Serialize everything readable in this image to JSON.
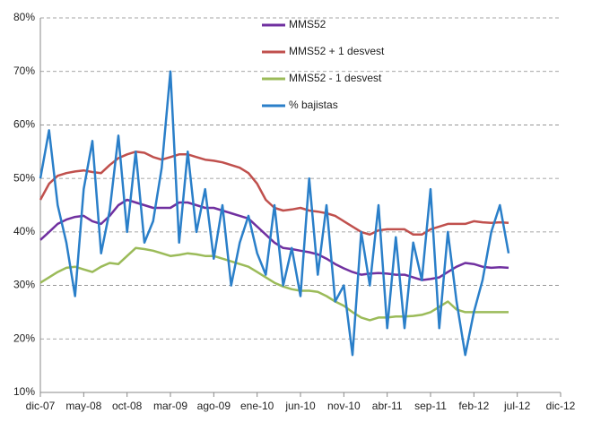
{
  "chart_data": {
    "type": "line",
    "categories": [
      "dic-07",
      null,
      null,
      null,
      null,
      "may-08",
      null,
      null,
      null,
      null,
      "oct-08",
      null,
      null,
      null,
      null,
      "mar-09",
      null,
      null,
      null,
      null,
      "ago-09",
      null,
      null,
      null,
      null,
      "ene-10",
      null,
      null,
      null,
      null,
      "jun-10",
      null,
      null,
      null,
      null,
      "nov-10",
      null,
      null,
      null,
      null,
      "abr-11",
      null,
      null,
      null,
      null,
      "sep-11",
      null,
      null,
      null,
      null,
      "feb-12",
      null,
      null,
      null,
      null,
      "jul-12",
      null,
      null,
      null,
      null,
      "dic-12"
    ],
    "series": [
      {
        "name": "MMS52",
        "color": "#7030a0",
        "values": [
          38.5,
          40,
          41.5,
          42.3,
          42.8,
          43,
          42,
          41.5,
          43,
          45,
          46,
          45.5,
          45,
          44.5,
          44.5,
          44.5,
          45.5,
          45.5,
          45,
          44.5,
          44.5,
          44,
          43.5,
          43,
          42.5,
          41,
          39.5,
          38,
          37,
          36.8,
          36.5,
          36.2,
          35.8,
          35,
          34,
          33.2,
          32.5,
          32,
          32.2,
          32.3,
          32.2,
          32,
          32,
          31.5,
          31,
          31.2,
          31.5,
          32.5,
          33.5,
          34.2,
          34,
          33.5,
          33.3,
          33.4,
          33.3,
          null,
          null,
          null,
          null,
          null,
          null
        ]
      },
      {
        "name": "MMS52 + 1 desvest",
        "color": "#c0504d",
        "values": [
          46,
          49,
          50.5,
          51,
          51.3,
          51.5,
          51.2,
          51,
          52.5,
          53.8,
          54.5,
          55,
          54.8,
          54,
          53.5,
          54,
          54.5,
          54.5,
          54,
          53.5,
          53.3,
          53,
          52.5,
          52,
          51,
          49,
          46,
          44.5,
          44,
          44.2,
          44.5,
          44,
          43.8,
          43.5,
          43,
          42,
          41,
          40,
          39.5,
          40.3,
          40.5,
          40.5,
          40.5,
          39.5,
          39.5,
          40.5,
          41,
          41.5,
          41.5,
          41.5,
          42,
          41.8,
          41.7,
          41.8,
          41.7,
          null,
          null,
          null,
          null,
          null,
          null
        ]
      },
      {
        "name": "MMS52 - 1 desvest",
        "color": "#9bbb59",
        "values": [
          30.5,
          31.5,
          32.5,
          33.3,
          33.5,
          33,
          32.5,
          33.5,
          34.2,
          34,
          35.5,
          37,
          36.8,
          36.5,
          36,
          35.5,
          35.7,
          36,
          35.8,
          35.5,
          35.5,
          35,
          34.5,
          34,
          33.5,
          32.5,
          31.5,
          30.5,
          29.8,
          29.3,
          29,
          29,
          28.8,
          28,
          27,
          26.2,
          25,
          24,
          23.5,
          24,
          24,
          24.2,
          24.2,
          24.3,
          24.5,
          25,
          26,
          27,
          25.5,
          25,
          25,
          25,
          25,
          25,
          25,
          null,
          null,
          null,
          null,
          null,
          null
        ]
      },
      {
        "name": "% bajistas",
        "color": "#2a7fc9",
        "values": [
          50,
          59,
          45,
          38,
          28,
          48,
          57,
          36,
          44,
          58,
          40,
          55,
          38,
          42,
          52,
          70,
          38,
          55,
          40,
          48,
          35,
          45,
          30,
          38,
          43,
          36,
          32,
          45,
          30,
          37,
          28,
          50,
          32,
          45,
          27,
          30,
          17,
          40,
          30,
          45,
          22,
          39,
          22,
          38,
          31,
          48,
          22,
          40,
          27,
          17,
          25,
          31,
          40,
          45,
          36,
          null,
          null,
          null,
          null,
          null,
          null
        ]
      }
    ],
    "ylim": [
      10,
      80
    ],
    "yticks": [
      {
        "value": 10,
        "label": "10%"
      },
      {
        "value": 20,
        "label": "20%"
      },
      {
        "value": 30,
        "label": "30%"
      },
      {
        "value": 40,
        "label": "40%"
      },
      {
        "value": 50,
        "label": "50%"
      },
      {
        "value": 60,
        "label": "60%"
      },
      {
        "value": 70,
        "label": "70%"
      },
      {
        "value": 80,
        "label": "80%"
      }
    ],
    "grid": true,
    "legend": "top"
  }
}
